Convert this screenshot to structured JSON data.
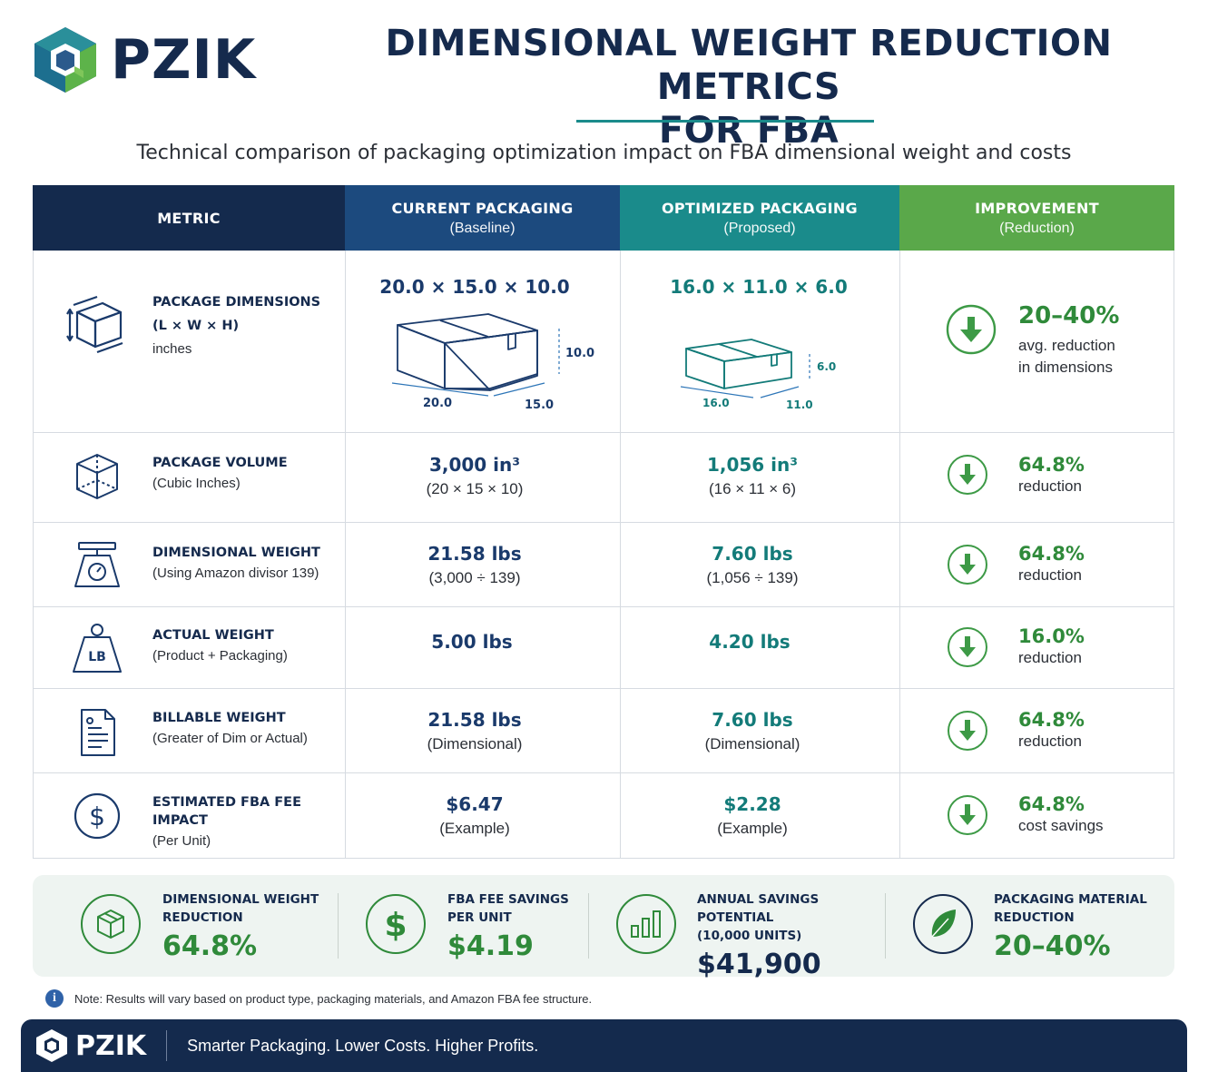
{
  "brand": {
    "name": "PZIK"
  },
  "title": {
    "line1": "DIMENSIONAL WEIGHT REDUCTION METRICS",
    "line2": "FOR FBA"
  },
  "subtitle": "Technical comparison of packaging optimization impact on FBA dimensional weight and costs",
  "colors": {
    "navy": "#142a4d",
    "header_blue": "#1c4a7e",
    "header_teal": "#1a8b8b",
    "header_green": "#5aa84a",
    "improve_green": "#2f8a3a"
  },
  "table": {
    "headers": [
      {
        "title": "METRIC",
        "sub": ""
      },
      {
        "title": "CURRENT PACKAGING",
        "sub": "(Baseline)"
      },
      {
        "title": "OPTIMIZED PACKAGING",
        "sub": "(Proposed)"
      },
      {
        "title": "IMPROVEMENT",
        "sub": "(Reduction)"
      }
    ],
    "rows": [
      {
        "icon": "box-dimensions-icon",
        "title": "PACKAGE DIMENSIONS",
        "title2": "(L × W × H)",
        "sub": "inches",
        "current": "20.0 × 15.0 × 10.0",
        "current_box": {
          "length": "20.0",
          "width": "15.0",
          "height": "10.0"
        },
        "optimized": "16.0 × 11.0 × 6.0",
        "optimized_box": {
          "length": "16.0",
          "width": "11.0",
          "height": "6.0"
        },
        "improvement": "20–40%",
        "improvement_text": "avg. reduction",
        "improvement_text2": "in dimensions"
      },
      {
        "icon": "cube-volume-icon",
        "title": "PACKAGE VOLUME",
        "sub": "(Cubic Inches)",
        "current": "3,000 in³",
        "current_sub": "(20 × 15 × 10)",
        "optimized": "1,056 in³",
        "optimized_sub": "(16 × 11 × 6)",
        "improvement": "64.8%",
        "improvement_text": "reduction"
      },
      {
        "icon": "scale-icon",
        "title": "DIMENSIONAL WEIGHT",
        "sub": "(Using Amazon divisor 139)",
        "current": "21.58 lbs",
        "current_sub": "(3,000 ÷ 139)",
        "optimized": "7.60 lbs",
        "optimized_sub": "(1,056 ÷ 139)",
        "improvement": "64.8%",
        "improvement_text": "reduction"
      },
      {
        "icon": "weight-lb-icon",
        "icon_text": "LB",
        "title": "ACTUAL WEIGHT",
        "sub": "(Product + Packaging)",
        "current": "5.00 lbs",
        "optimized": "4.20 lbs",
        "improvement": "16.0%",
        "improvement_text": "reduction"
      },
      {
        "icon": "invoice-icon",
        "title": "BILLABLE WEIGHT",
        "sub": "(Greater of Dim or Actual)",
        "current": "21.58 lbs",
        "current_sub": "(Dimensional)",
        "optimized": "7.60 lbs",
        "optimized_sub": "(Dimensional)",
        "improvement": "64.8%",
        "improvement_text": "reduction"
      },
      {
        "icon": "dollar-icon",
        "title": "ESTIMATED FBA FEE IMPACT",
        "sub": "(Per Unit)",
        "current": "$6.47",
        "current_sub": "(Example)",
        "optimized": "$2.28",
        "optimized_sub": "(Example)",
        "improvement": "64.8%",
        "improvement_text": "cost savings"
      }
    ]
  },
  "summary": [
    {
      "icon": "box-icon",
      "label1": "DIMENSIONAL WEIGHT",
      "label2": "REDUCTION",
      "value": "64.8%"
    },
    {
      "icon": "dollar-icon",
      "label1": "FBA FEE SAVINGS",
      "label2": "PER UNIT",
      "value": "$4.19"
    },
    {
      "icon": "bar-chart-icon",
      "label1": "ANNUAL SAVINGS POTENTIAL",
      "label2": "(10,000 UNITS)",
      "value": "$41,900"
    },
    {
      "icon": "leaf-icon",
      "label1": "PACKAGING MATERIAL",
      "label2": "REDUCTION",
      "value": "20–40%"
    }
  ],
  "note": {
    "icon": "i",
    "text": "Note: Results will vary based on product type, packaging materials, and Amazon FBA fee structure."
  },
  "footer": {
    "brand": "PZIK",
    "tagline": "Smarter Packaging. Lower Costs. Higher Profits."
  }
}
